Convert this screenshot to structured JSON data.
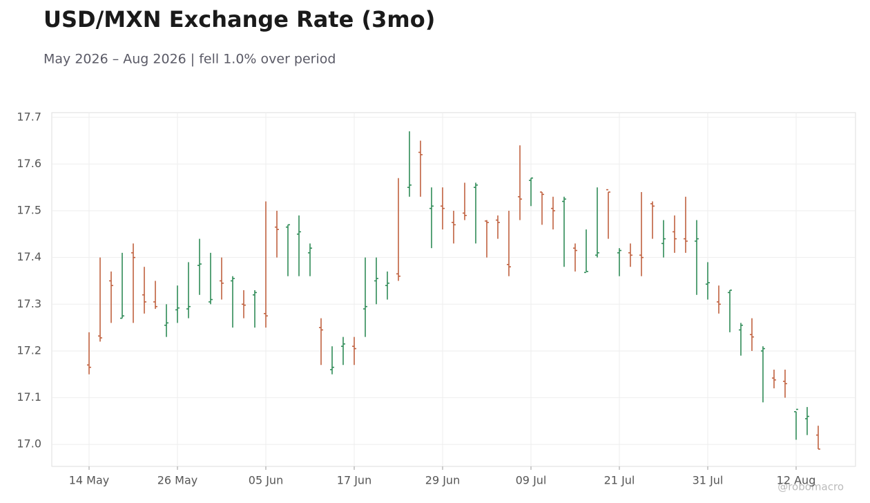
{
  "chart_data": {
    "type": "ohlc",
    "title": "USD/MXN Exchange Rate (3mo)",
    "subtitle": "May 2026 – Aug 2026 | fell 1.0% over period",
    "watermark": "@robomacro",
    "categories": [
      "14 May",
      null,
      null,
      null,
      null,
      null,
      null,
      null,
      "26 May",
      null,
      null,
      null,
      null,
      null,
      null,
      null,
      "05 Jun",
      null,
      null,
      null,
      null,
      null,
      null,
      null,
      "17 Jun",
      null,
      null,
      null,
      null,
      null,
      null,
      null,
      "29 Jun",
      null,
      null,
      null,
      null,
      null,
      null,
      null,
      "09 Jul",
      null,
      null,
      null,
      null,
      null,
      null,
      null,
      "21 Jul",
      null,
      null,
      null,
      null,
      null,
      null,
      null,
      "31 Jul",
      null,
      null,
      null,
      null,
      null,
      null,
      null,
      "12 Aug",
      null,
      null
    ],
    "open": [
      17.17,
      17.232,
      17.35,
      17.27,
      17.41,
      17.32,
      17.305,
      17.255,
      17.288,
      17.29,
      17.383,
      17.305,
      17.35,
      17.35,
      17.3,
      17.32,
      17.28,
      17.465,
      17.465,
      17.45,
      17.41,
      17.25,
      17.16,
      17.21,
      17.21,
      17.29,
      17.35,
      17.34,
      17.365,
      17.55,
      17.625,
      17.505,
      17.51,
      17.475,
      17.495,
      17.55,
      17.478,
      17.48,
      17.385,
      17.53,
      17.565,
      17.54,
      17.505,
      17.52,
      17.42,
      17.368,
      17.405,
      17.545,
      17.41,
      17.41,
      17.405,
      17.515,
      17.43,
      17.455,
      17.44,
      17.435,
      17.343,
      17.305,
      17.325,
      17.245,
      17.235,
      17.2,
      17.142,
      17.135,
      17.07,
      17.055,
      17.02
    ],
    "high": [
      17.24,
      17.4,
      17.37,
      17.41,
      17.43,
      17.38,
      17.35,
      17.3,
      17.34,
      17.39,
      17.44,
      17.41,
      17.4,
      17.36,
      17.33,
      17.33,
      17.52,
      17.5,
      17.47,
      17.49,
      17.43,
      17.27,
      17.21,
      17.23,
      17.23,
      17.4,
      17.4,
      17.37,
      17.57,
      17.67,
      17.65,
      17.55,
      17.55,
      17.5,
      17.56,
      17.56,
      17.48,
      17.49,
      17.5,
      17.64,
      17.57,
      17.54,
      17.53,
      17.53,
      17.43,
      17.46,
      17.55,
      17.54,
      17.42,
      17.43,
      17.54,
      17.52,
      17.48,
      17.49,
      17.53,
      17.48,
      17.39,
      17.34,
      17.33,
      17.26,
      17.27,
      17.21,
      17.16,
      17.16,
      17.07,
      17.08,
      17.04
    ],
    "low": [
      17.15,
      17.22,
      17.26,
      17.27,
      17.26,
      17.28,
      17.29,
      17.23,
      17.26,
      17.27,
      17.32,
      17.3,
      17.31,
      17.25,
      17.27,
      17.25,
      17.25,
      17.4,
      17.36,
      17.36,
      17.36,
      17.17,
      17.15,
      17.17,
      17.17,
      17.23,
      17.3,
      17.31,
      17.35,
      17.53,
      17.53,
      17.42,
      17.46,
      17.43,
      17.48,
      17.43,
      17.4,
      17.44,
      17.36,
      17.48,
      17.51,
      17.47,
      17.46,
      17.38,
      17.37,
      17.37,
      17.4,
      17.44,
      17.36,
      17.38,
      17.36,
      17.44,
      17.4,
      17.41,
      17.41,
      17.32,
      17.31,
      17.28,
      17.24,
      17.19,
      17.2,
      17.09,
      17.12,
      17.1,
      17.01,
      17.02,
      16.99
    ],
    "close": [
      17.165,
      17.228,
      17.34,
      17.275,
      17.4,
      17.305,
      17.295,
      17.26,
      17.292,
      17.295,
      17.386,
      17.31,
      17.345,
      17.355,
      17.298,
      17.325,
      17.275,
      17.46,
      17.47,
      17.455,
      17.42,
      17.245,
      17.165,
      17.215,
      17.205,
      17.295,
      17.355,
      17.345,
      17.36,
      17.555,
      17.62,
      17.51,
      17.505,
      17.47,
      17.49,
      17.555,
      17.475,
      17.475,
      17.38,
      17.525,
      17.57,
      17.535,
      17.5,
      17.525,
      17.415,
      17.37,
      17.41,
      17.54,
      17.415,
      17.405,
      17.4,
      17.51,
      17.44,
      17.44,
      17.435,
      17.44,
      17.346,
      17.3,
      17.33,
      17.255,
      17.23,
      17.205,
      17.138,
      17.13,
      17.075,
      17.06,
      16.99
    ],
    "up_color": "#2e8b57",
    "down_color": "#c0603e",
    "ylim": [
      16.953,
      17.71
    ],
    "yticks": [
      {
        "value": 17,
        "label": "17.0"
      },
      17.1,
      17.2,
      17.3,
      17.4,
      17.5,
      17.6,
      17.7
    ],
    "grid": true
  }
}
